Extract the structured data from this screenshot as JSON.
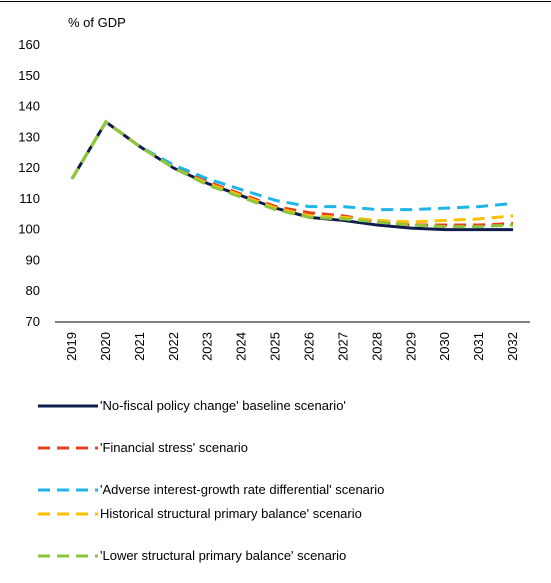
{
  "chart_data": {
    "type": "line",
    "y_label": "% of GDP",
    "categories": [
      "2019",
      "2020",
      "2021",
      "2022",
      "2023",
      "2024",
      "2025",
      "2026",
      "2027",
      "2028",
      "2029",
      "2030",
      "2031",
      "2032"
    ],
    "series": [
      {
        "name": "'No-fiscal policy change' baseline scenario'",
        "color": "#0d1c4d",
        "dash": "solid",
        "values": [
          116.5,
          135,
          127,
          120,
          115,
          111,
          107,
          104,
          103,
          101.5,
          100.5,
          100,
          100,
          100
        ]
      },
      {
        "name": "'Financial stress' scenario",
        "color": "#e8401c",
        "dash": "dashed",
        "values": [
          116.5,
          135,
          127,
          120.5,
          115.5,
          111.5,
          107.5,
          105.5,
          104.5,
          102.5,
          101.5,
          101.5,
          101.5,
          102
        ]
      },
      {
        "name": "'Adverse interest-growth rate differential' scenario",
        "color": "#1fb5e8",
        "dash": "dashed",
        "values": [
          116.5,
          135,
          127,
          121,
          116.5,
          113,
          109.5,
          107.5,
          107.5,
          106.5,
          106.5,
          107,
          107.5,
          108.5
        ]
      },
      {
        "name": "Historical structural primary balance' scenario",
        "color": "#ffc000",
        "dash": "dashed",
        "values": [
          116.5,
          135,
          127,
          120,
          115,
          111,
          107,
          104.5,
          104,
          103,
          102.5,
          103,
          103.5,
          104.5
        ]
      },
      {
        "name": "'Lower structural primary balance' scenario",
        "color": "#8cc63f",
        "dash": "dashed",
        "values": [
          116.5,
          135,
          127,
          120,
          114.5,
          110.5,
          106.5,
          104,
          103.5,
          102.5,
          101.5,
          101,
          101,
          101.5
        ]
      }
    ],
    "ylim": [
      70,
      160
    ],
    "yticks": [
      70,
      80,
      90,
      100,
      110,
      120,
      130,
      140,
      150,
      160
    ],
    "grid": false
  }
}
